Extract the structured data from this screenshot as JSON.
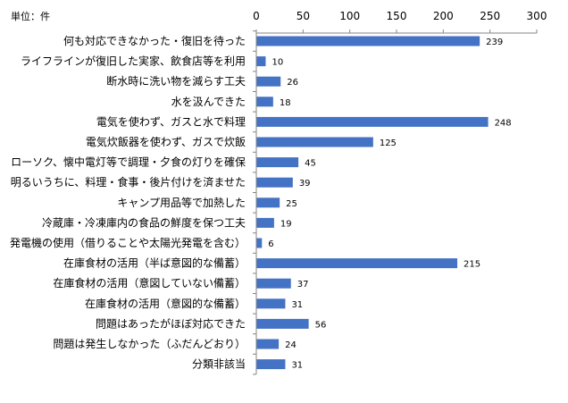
{
  "chart_data": {
    "type": "bar",
    "orientation": "horizontal",
    "unit_label": "単位：件",
    "categories": [
      "何も対応できなかった・復旧を待った",
      "ライフラインが復旧した実家、飲食店等を利用",
      "断水時に洗い物を減らす工夫",
      "水を汲んできた",
      "電気を使わず、ガスと水で料理",
      "電気炊飯器を使わず、ガスで炊飯",
      "ローソク、懐中電灯等で調理・夕食の灯りを確保",
      "明るいうちに、料理・食事・後片付けを済ませた",
      "キャンプ用品等で加熱した",
      "冷蔵庫・冷凍庫内の食品の鮮度を保つ工夫",
      "発電機の使用（借りることや太陽光発電を含む）",
      "在庫食材の活用（半ば意図的な備蓄）",
      "在庫食材の活用（意図していない備蓄）",
      "在庫食材の活用（意図的な備蓄）",
      "問題はあったがほぼ対応できた",
      "問題は発生しなかった（ふだんどおり）",
      "分類非該当"
    ],
    "values": [
      239,
      10,
      26,
      18,
      248,
      125,
      45,
      39,
      25,
      19,
      6,
      215,
      37,
      31,
      56,
      24,
      31
    ],
    "xlim": [
      0,
      300
    ],
    "x_ticks": [
      "0",
      "50",
      "100",
      "150",
      "200",
      "250",
      "300"
    ],
    "axis_position": "top",
    "grid": false,
    "legend": "none",
    "bar_color": "#4472C4"
  }
}
